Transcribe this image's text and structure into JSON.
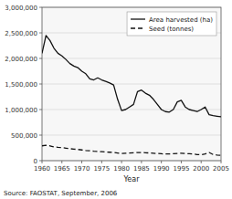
{
  "chart_data": {
    "type": "line",
    "xlabel": "Year",
    "annotations": [
      "Source: FAOSTAT, September, 2006"
    ],
    "x": [
      1960,
      1961,
      1962,
      1963,
      1964,
      1965,
      1966,
      1967,
      1968,
      1969,
      1970,
      1971,
      1972,
      1973,
      1974,
      1975,
      1976,
      1977,
      1978,
      1979,
      1980,
      1981,
      1982,
      1983,
      1984,
      1985,
      1986,
      1987,
      1988,
      1989,
      1990,
      1991,
      1992,
      1993,
      1994,
      1995,
      1996,
      1997,
      1998,
      1999,
      2000,
      2001,
      2002,
      2003,
      2004,
      2005
    ],
    "series": [
      {
        "name": "Area harvested (ha)",
        "color": "#111111",
        "line_style": "solid",
        "values": [
          2100000,
          2450000,
          2350000,
          2200000,
          2100000,
          2050000,
          1980000,
          1900000,
          1850000,
          1820000,
          1750000,
          1700000,
          1600000,
          1580000,
          1620000,
          1580000,
          1550000,
          1520000,
          1480000,
          1200000,
          980000,
          1000000,
          1050000,
          1100000,
          1350000,
          1380000,
          1320000,
          1280000,
          1200000,
          1100000,
          1000000,
          960000,
          950000,
          1000000,
          1150000,
          1180000,
          1050000,
          1000000,
          980000,
          960000,
          1000000,
          1050000,
          900000,
          880000,
          870000,
          860000
        ]
      },
      {
        "name": "Seed (tonnes)",
        "color": "#111111",
        "line_style": "dashed",
        "values": [
          290000,
          300000,
          290000,
          270000,
          260000,
          255000,
          245000,
          235000,
          225000,
          220000,
          210000,
          200000,
          195000,
          185000,
          180000,
          175000,
          170000,
          165000,
          160000,
          150000,
          140000,
          145000,
          150000,
          155000,
          160000,
          160000,
          155000,
          150000,
          145000,
          140000,
          135000,
          130000,
          130000,
          135000,
          140000,
          145000,
          140000,
          135000,
          130000,
          120000,
          115000,
          130000,
          160000,
          120000,
          110000,
          105000
        ]
      }
    ],
    "xlim": [
      1960,
      2005
    ],
    "xticks": [
      1960,
      1965,
      1970,
      1975,
      1980,
      1985,
      1990,
      1995,
      2000,
      2005
    ],
    "ylim": [
      0,
      3000000
    ],
    "yticks": [
      0,
      {
        "value": 500000,
        "label": "500,000"
      },
      {
        "value": 1000000,
        "label": "1,000,000"
      },
      {
        "value": 1500000,
        "label": "1,500,000"
      },
      {
        "value": 2000000,
        "label": "2,000,000"
      },
      {
        "value": 2500000,
        "label": "2,500,000"
      },
      {
        "value": 3000000,
        "label": "3,000,000"
      }
    ],
    "grid": true,
    "legend": "upper right"
  }
}
